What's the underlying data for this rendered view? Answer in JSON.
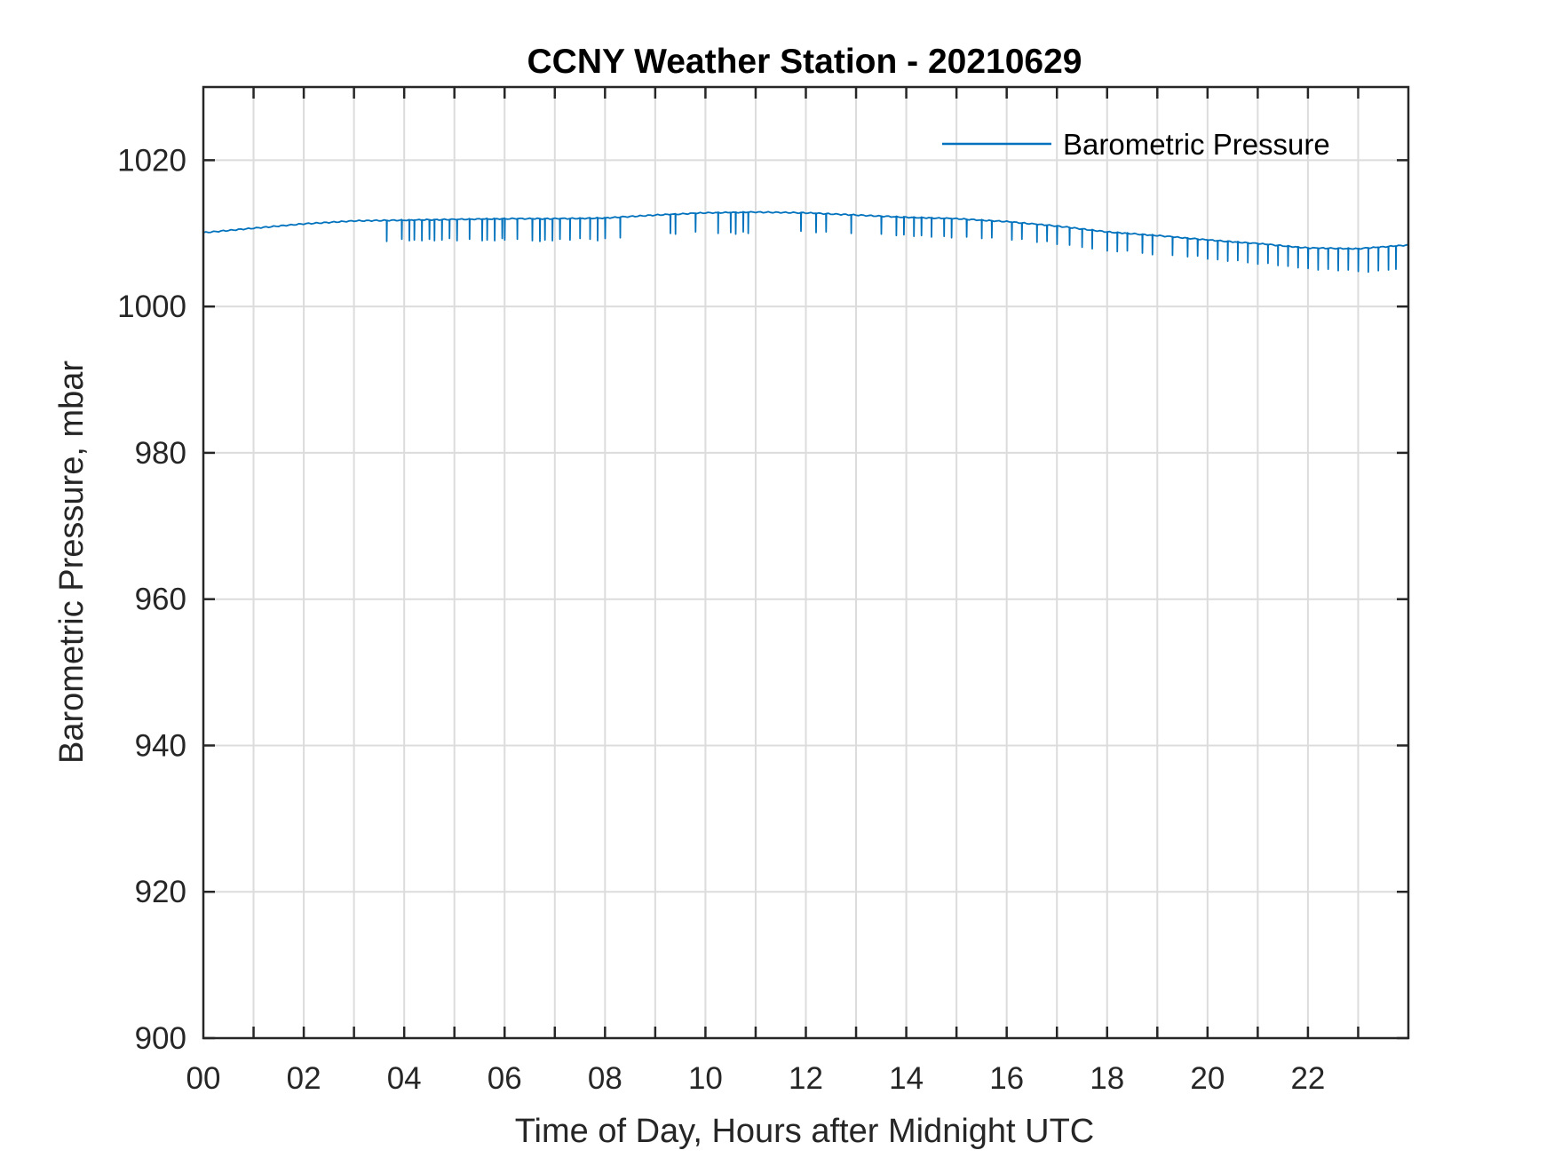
{
  "chart_data": {
    "type": "line",
    "title": "CCNY Weather Station - 20210629",
    "xlabel": "Time of Day, Hours after Midnight UTC",
    "ylabel": "Barometric Pressure, mbar",
    "xlim": [
      0,
      24
    ],
    "ylim": [
      900,
      1030
    ],
    "xticks": [
      0,
      2,
      4,
      6,
      8,
      10,
      12,
      14,
      16,
      18,
      20,
      22
    ],
    "xtick_labels": [
      "00",
      "02",
      "04",
      "06",
      "08",
      "10",
      "12",
      "14",
      "16",
      "18",
      "20",
      "22"
    ],
    "xgrid_step_hours": 1,
    "yticks": [
      900,
      920,
      940,
      960,
      980,
      1000,
      1020
    ],
    "ytick_labels": [
      "900",
      "920",
      "940",
      "960",
      "980",
      "1000",
      "1020"
    ],
    "grid": true,
    "legend": {
      "entries": [
        "Barometric Pressure"
      ],
      "placement": "top-right"
    },
    "series": [
      {
        "name": "Barometric Pressure",
        "color": "#0072BD",
        "baseline": {
          "x": [
            0,
            1,
            2,
            3,
            4,
            5,
            6,
            7,
            8,
            9,
            10,
            11,
            12,
            13,
            14,
            15,
            16,
            17,
            18,
            19,
            20,
            21,
            22,
            23,
            24
          ],
          "y": [
            1010.1,
            1010.7,
            1011.3,
            1011.7,
            1011.8,
            1011.9,
            1012.0,
            1012.0,
            1012.1,
            1012.5,
            1012.8,
            1012.9,
            1012.8,
            1012.5,
            1012.2,
            1012.0,
            1011.6,
            1011.0,
            1010.2,
            1009.7,
            1009.1,
            1008.6,
            1008.0,
            1007.9,
            1008.4
          ]
        },
        "dips": [
          [
            3.65,
            1008.9
          ],
          [
            3.95,
            1009.2
          ],
          [
            4.1,
            1009.0
          ],
          [
            4.2,
            1009.1
          ],
          [
            4.35,
            1009.0
          ],
          [
            4.5,
            1009.2
          ],
          [
            4.6,
            1009.0
          ],
          [
            4.75,
            1009.1
          ],
          [
            4.9,
            1009.3
          ],
          [
            5.05,
            1009.0
          ],
          [
            5.3,
            1009.2
          ],
          [
            5.55,
            1009.0
          ],
          [
            5.65,
            1009.1
          ],
          [
            5.8,
            1009.0
          ],
          [
            5.95,
            1009.3
          ],
          [
            6.0,
            1009.1
          ],
          [
            6.25,
            1009.2
          ],
          [
            6.55,
            1009.0
          ],
          [
            6.7,
            1008.9
          ],
          [
            6.8,
            1009.1
          ],
          [
            6.95,
            1009.0
          ],
          [
            7.1,
            1009.2
          ],
          [
            7.3,
            1009.1
          ],
          [
            7.5,
            1009.3
          ],
          [
            7.7,
            1009.2
          ],
          [
            7.85,
            1009.0
          ],
          [
            8.0,
            1009.3
          ],
          [
            8.3,
            1009.4
          ],
          [
            9.3,
            1010.0
          ],
          [
            9.4,
            1009.9
          ],
          [
            9.8,
            1010.2
          ],
          [
            10.25,
            1010.0
          ],
          [
            10.5,
            1010.1
          ],
          [
            10.6,
            1009.9
          ],
          [
            10.75,
            1010.2
          ],
          [
            10.85,
            1010.0
          ],
          [
            11.9,
            1010.3
          ],
          [
            12.2,
            1010.1
          ],
          [
            12.4,
            1010.2
          ],
          [
            12.9,
            1010.0
          ],
          [
            13.5,
            1009.9
          ],
          [
            13.8,
            1009.7
          ],
          [
            13.95,
            1009.8
          ],
          [
            14.15,
            1009.6
          ],
          [
            14.3,
            1009.7
          ],
          [
            14.5,
            1009.5
          ],
          [
            14.75,
            1009.6
          ],
          [
            14.9,
            1009.4
          ],
          [
            15.2,
            1009.5
          ],
          [
            15.5,
            1009.3
          ],
          [
            15.7,
            1009.4
          ],
          [
            16.1,
            1009.1
          ],
          [
            16.3,
            1009.2
          ],
          [
            16.6,
            1008.8
          ],
          [
            16.8,
            1008.9
          ],
          [
            17.0,
            1008.5
          ],
          [
            17.25,
            1008.4
          ],
          [
            17.5,
            1008.1
          ],
          [
            17.7,
            1007.9
          ],
          [
            18.0,
            1007.6
          ],
          [
            18.2,
            1007.5
          ],
          [
            18.4,
            1007.6
          ],
          [
            18.7,
            1007.3
          ],
          [
            18.9,
            1007.1
          ],
          [
            19.3,
            1007.0
          ],
          [
            19.6,
            1006.8
          ],
          [
            19.8,
            1006.9
          ],
          [
            20.0,
            1006.5
          ],
          [
            20.2,
            1006.4
          ],
          [
            20.4,
            1006.2
          ],
          [
            20.6,
            1006.3
          ],
          [
            20.8,
            1006.0
          ],
          [
            21.0,
            1005.8
          ],
          [
            21.2,
            1005.9
          ],
          [
            21.4,
            1005.6
          ],
          [
            21.6,
            1005.5
          ],
          [
            21.8,
            1005.3
          ],
          [
            22.0,
            1005.2
          ],
          [
            22.2,
            1005.0
          ],
          [
            22.4,
            1005.1
          ],
          [
            22.6,
            1004.9
          ],
          [
            22.8,
            1005.0
          ],
          [
            23.0,
            1004.8
          ],
          [
            23.2,
            1004.7
          ],
          [
            23.4,
            1004.9
          ],
          [
            23.6,
            1005.0
          ],
          [
            23.75,
            1005.1
          ]
        ]
      }
    ]
  }
}
